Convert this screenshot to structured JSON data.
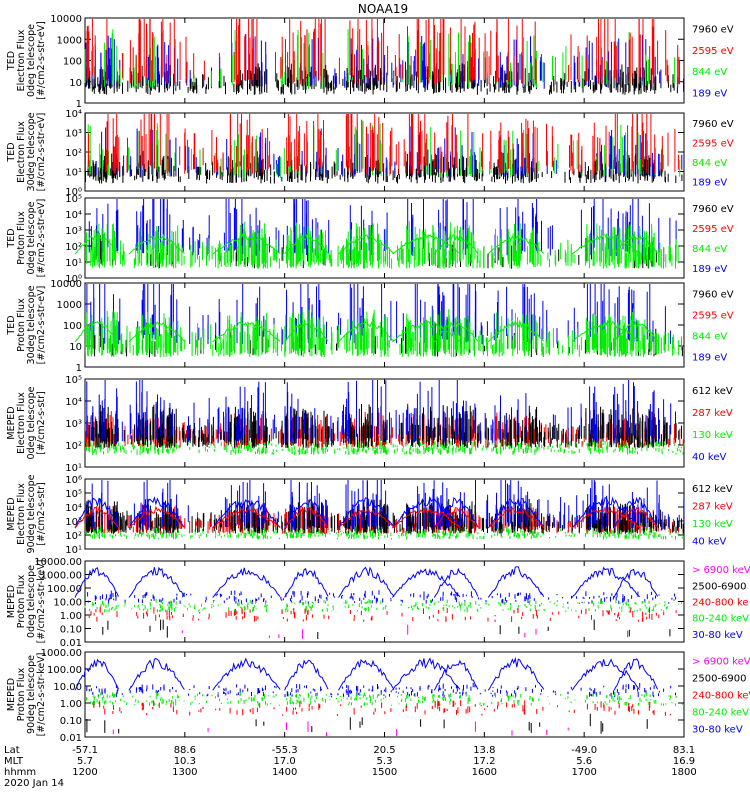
{
  "title": "NOAA19",
  "date_label": "2020 Jan 14",
  "axis_row_labels": [
    "Lat",
    "MLT",
    "hhmm"
  ],
  "x_ticks": [
    {
      "lat": "-57.1",
      "mlt": "5.7",
      "hhmm": "1200"
    },
    {
      "lat": "88.6",
      "mlt": "10.3",
      "hhmm": "1300"
    },
    {
      "lat": "-55.3",
      "mlt": "17.0",
      "hhmm": "1400"
    },
    {
      "lat": "20.5",
      "mlt": "5.3",
      "hhmm": "1500"
    },
    {
      "lat": "13.8",
      "mlt": "17.2",
      "hhmm": "1600"
    },
    {
      "lat": "-49.0",
      "mlt": "5.6",
      "hhmm": "1700"
    },
    {
      "lat": "83.1",
      "mlt": "16.9",
      "hhmm": "1800"
    }
  ],
  "colors": {
    "black": "#000000",
    "red": "#ff0000",
    "green": "#00ee00",
    "blue": "#0000ff",
    "magenta": "#ff00ff"
  },
  "chart_data": [
    {
      "type": "scatter",
      "ylabel": [
        "TED",
        "Electron Flux",
        "0deg telescope",
        "[#/cm2-s-str-eV]"
      ],
      "yticks": [
        "1",
        "10",
        "100",
        "1000",
        "10000"
      ],
      "ylim": [
        1,
        10000
      ],
      "log": true,
      "legend": [
        {
          "label": "7960 eV",
          "color": "#000000"
        },
        {
          "label": "2595 eV",
          "color": "#ff0000"
        },
        {
          "label": "844 eV",
          "color": "#00ee00"
        },
        {
          "label": "189 eV",
          "color": "#0000ff"
        }
      ]
    },
    {
      "type": "scatter",
      "ylabel": [
        "TED",
        "Electron Flux",
        "30deg telescope",
        "[#/cm2-s-str-eV]"
      ],
      "yticks": [
        "10⁰",
        "10¹",
        "10²",
        "10³",
        "10⁴"
      ],
      "ylim": [
        1,
        10000
      ],
      "log": true,
      "legend": [
        {
          "label": "7960 eV",
          "color": "#000000"
        },
        {
          "label": "2595 eV",
          "color": "#ff0000"
        },
        {
          "label": "844 eV",
          "color": "#00ee00"
        },
        {
          "label": "189 eV",
          "color": "#0000ff"
        }
      ]
    },
    {
      "type": "scatter",
      "ylabel": [
        "TED",
        "Proton Flux",
        "0deg telescope",
        "[#/cm2-s-str-eV]"
      ],
      "yticks": [
        "10⁰",
        "10¹",
        "10²",
        "10³",
        "10⁴",
        "10⁵"
      ],
      "ylim": [
        1,
        100000
      ],
      "log": true,
      "legend": [
        {
          "label": "7960 eV",
          "color": "#000000"
        },
        {
          "label": "2595 eV",
          "color": "#ff0000"
        },
        {
          "label": "844 eV",
          "color": "#00ee00"
        },
        {
          "label": "189 eV",
          "color": "#0000ff"
        }
      ]
    },
    {
      "type": "scatter",
      "ylabel": [
        "TED",
        "Proton Flux",
        "30deg telescope",
        "[#/cm2-s-str-eV]"
      ],
      "yticks": [
        "1",
        "10",
        "100",
        "1000",
        "10000"
      ],
      "ylim": [
        1,
        10000
      ],
      "log": true,
      "legend": [
        {
          "label": "7960 eV",
          "color": "#000000"
        },
        {
          "label": "2595 eV",
          "color": "#ff0000"
        },
        {
          "label": "844 eV",
          "color": "#00ee00"
        },
        {
          "label": "189 eV",
          "color": "#0000ff"
        }
      ]
    },
    {
      "type": "scatter",
      "ylabel": [
        "MEPED",
        "Electron Flux",
        "0deg telescope",
        "[#/cm2-s-str]"
      ],
      "yticks": [
        "10¹",
        "10²",
        "10³",
        "10⁴",
        "10⁵"
      ],
      "ylim": [
        10,
        100000
      ],
      "log": true,
      "legend": [
        {
          "label": "612 keV",
          "color": "#000000"
        },
        {
          "label": "287 keV",
          "color": "#ff0000"
        },
        {
          "label": "130 keV",
          "color": "#00ee00"
        },
        {
          "label": "40 keV",
          "color": "#0000ff"
        }
      ]
    },
    {
      "type": "scatter",
      "ylabel": [
        "MEPED",
        "Electron Flux",
        "90deg telescope",
        "[#/cm2-s-str]"
      ],
      "yticks": [
        "10¹",
        "10²",
        "10³",
        "10⁴",
        "10⁵",
        "10⁶"
      ],
      "ylim": [
        10,
        1000000
      ],
      "log": true,
      "legend": [
        {
          "label": "612 keV",
          "color": "#000000"
        },
        {
          "label": "287 keV",
          "color": "#ff0000"
        },
        {
          "label": "130 keV",
          "color": "#00ee00"
        },
        {
          "label": "40 keV",
          "color": "#0000ff"
        }
      ]
    },
    {
      "type": "scatter",
      "ylabel": [
        "MEPED",
        "Proton Flux",
        "0deg telescope",
        "[#/cm2-s-str-keV]"
      ],
      "yticks": [
        "0.01",
        "0.10",
        "1.00",
        "10.00",
        "100.00",
        "1000.00",
        "10000.00"
      ],
      "ylim": [
        0.01,
        10000
      ],
      "log": true,
      "legend": [
        {
          "label": "> 6900 keV",
          "color": "#ff00ff"
        },
        {
          "label": "2500-6900",
          "color": "#000000"
        },
        {
          "label": "240-800 ke",
          "color": "#ff0000"
        },
        {
          "label": "80-240 keV",
          "color": "#00ee00"
        },
        {
          "label": "30-80 keV",
          "color": "#0000ff"
        }
      ]
    },
    {
      "type": "scatter",
      "ylabel": [
        "MEPED",
        "Proton Flux",
        "90deg telescope",
        "[#/cm2-s-str-keV]"
      ],
      "yticks": [
        "0.01",
        "0.10",
        "1.00",
        "10.00",
        "100.00",
        "1000.00"
      ],
      "ylim": [
        0.01,
        1000
      ],
      "log": true,
      "legend": [
        {
          "label": "> 6900 keV",
          "color": "#ff00ff"
        },
        {
          "label": "2500-6900",
          "color": "#000000"
        },
        {
          "label": "240-800 keV",
          "color": "#ff0000"
        },
        {
          "label": "80-240 keV",
          "color": "#00ee00"
        },
        {
          "label": "30-80 keV",
          "color": "#0000ff"
        }
      ]
    }
  ]
}
